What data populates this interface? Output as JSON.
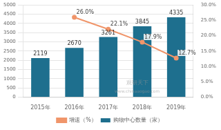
{
  "chart_data": {
    "type": "bar",
    "categories": [
      "2015年",
      "2016年",
      "2017年",
      "2018年",
      "2019年"
    ],
    "series": [
      {
        "name": "购物中心数量（家）",
        "type": "bar",
        "color": "#1e6f8e",
        "values": [
          2119,
          2670,
          3261,
          3845,
          4335
        ],
        "data_labels": true
      },
      {
        "name": "增速（%）",
        "type": "line",
        "color": "#f0956a",
        "axis": "y2",
        "marker": "circle",
        "values": [
          null,
          26.0,
          22.1,
          17.9,
          12.7
        ],
        "value_labels": [
          null,
          "26.0%",
          "22.1%",
          "17.9%",
          "12.7%"
        ],
        "data_labels": true
      }
    ],
    "ylim": [
      0,
      5000
    ],
    "yticks": [
      0,
      500,
      1000,
      1500,
      2000,
      2500,
      3000,
      3500,
      4000,
      4500,
      5000
    ],
    "y2lim": [
      0,
      30
    ],
    "y2ticks": [
      {
        "value": 0,
        "label": "0.0%"
      },
      {
        "value": 5,
        "label": "5.0%"
      },
      {
        "value": 10,
        "label": "10.0%"
      },
      {
        "value": 15,
        "label": "15.0%"
      },
      {
        "value": 20,
        "label": "20.0%"
      },
      {
        "value": 25,
        "label": "25.0%"
      },
      {
        "value": 30,
        "label": "30.0%"
      }
    ],
    "grid": true,
    "legend": "bottom",
    "annotations": [
      "观研天下",
      "www.chinaaogao.com"
    ]
  }
}
